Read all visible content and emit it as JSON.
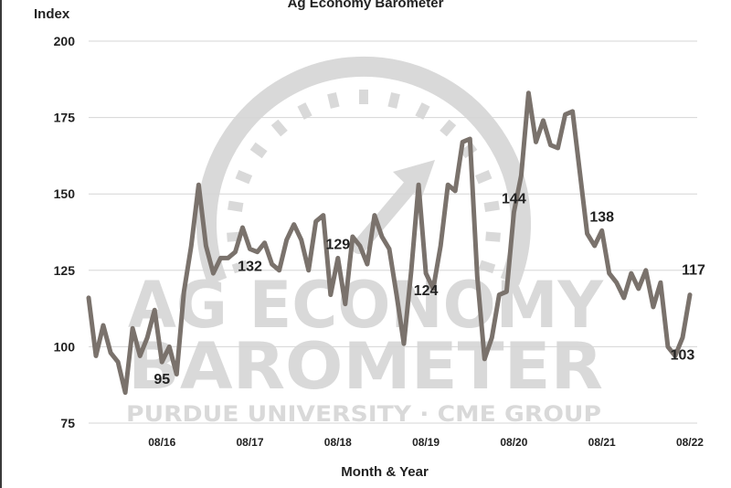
{
  "chart_data": {
    "type": "line",
    "title": "Ag Economy Barometer",
    "ylabel": "Index",
    "xlabel": "Month & Year",
    "ylim": [
      75,
      200
    ],
    "yticks": [
      75,
      100,
      125,
      150,
      175,
      200
    ],
    "grid": "horizontal",
    "x_tick_labels": [
      "08/16",
      "08/17",
      "08/18",
      "08/19",
      "08/20",
      "08/21",
      "08/22"
    ],
    "x_tick_months": [
      "2016-08",
      "2017-08",
      "2018-08",
      "2019-08",
      "2020-08",
      "2021-08",
      "2022-08"
    ],
    "x_range": [
      "2015-10",
      "2022-09"
    ],
    "line_color": "#7a726c",
    "watermark": {
      "line1": "AG ECONOMY",
      "line2": "BAROMETER",
      "line3": "PURDUE UNIVERSITY · CME GROUP",
      "color": "#d9d9d9"
    },
    "series": [
      {
        "points": [
          [
            "2015-10",
            116
          ],
          [
            "2015-11",
            97
          ],
          [
            "2015-12",
            107
          ],
          [
            "2016-01",
            98
          ],
          [
            "2016-02",
            95
          ],
          [
            "2016-03",
            85
          ],
          [
            "2016-04",
            106
          ],
          [
            "2016-05",
            97
          ],
          [
            "2016-06",
            103
          ],
          [
            "2016-07",
            112
          ],
          [
            "2016-08",
            95
          ],
          [
            "2016-09",
            100
          ],
          [
            "2016-10",
            91
          ],
          [
            "2016-11",
            118
          ],
          [
            "2016-12",
            133
          ],
          [
            "2017-01",
            153
          ],
          [
            "2017-02",
            133
          ],
          [
            "2017-03",
            124
          ],
          [
            "2017-04",
            129
          ],
          [
            "2017-05",
            129
          ],
          [
            "2017-06",
            131
          ],
          [
            "2017-07",
            139
          ],
          [
            "2017-08",
            132
          ],
          [
            "2017-09",
            131
          ],
          [
            "2017-10",
            134
          ],
          [
            "2017-11",
            127
          ],
          [
            "2017-12",
            125
          ],
          [
            "2018-01",
            135
          ],
          [
            "2018-02",
            140
          ],
          [
            "2018-03",
            135
          ],
          [
            "2018-04",
            125
          ],
          [
            "2018-05",
            141
          ],
          [
            "2018-06",
            143
          ],
          [
            "2018-07",
            117
          ],
          [
            "2018-08",
            129
          ],
          [
            "2018-09",
            114
          ],
          [
            "2018-10",
            136
          ],
          [
            "2018-11",
            133
          ],
          [
            "2018-12",
            127
          ],
          [
            "2019-01",
            143
          ],
          [
            "2019-02",
            136
          ],
          [
            "2019-03",
            132
          ],
          [
            "2019-04",
            117
          ],
          [
            "2019-05",
            101
          ],
          [
            "2019-06",
            125
          ],
          [
            "2019-07",
            153
          ],
          [
            "2019-08",
            124
          ],
          [
            "2019-09",
            119
          ],
          [
            "2019-10",
            133
          ],
          [
            "2019-11",
            153
          ],
          [
            "2019-12",
            151
          ],
          [
            "2020-01",
            167
          ],
          [
            "2020-02",
            168
          ],
          [
            "2020-03",
            123
          ],
          [
            "2020-04",
            96
          ],
          [
            "2020-05",
            103
          ],
          [
            "2020-06",
            117
          ],
          [
            "2020-07",
            118
          ],
          [
            "2020-08",
            144
          ],
          [
            "2020-09",
            156
          ],
          [
            "2020-10",
            183
          ],
          [
            "2020-11",
            167
          ],
          [
            "2020-12",
            174
          ],
          [
            "2021-01",
            166
          ],
          [
            "2021-02",
            165
          ],
          [
            "2021-03",
            176
          ],
          [
            "2021-04",
            177
          ],
          [
            "2021-05",
            157
          ],
          [
            "2021-06",
            137
          ],
          [
            "2021-07",
            133
          ],
          [
            "2021-08",
            138
          ],
          [
            "2021-09",
            124
          ],
          [
            "2021-10",
            121
          ],
          [
            "2021-11",
            116
          ],
          [
            "2021-12",
            124
          ],
          [
            "2022-01",
            119
          ],
          [
            "2022-02",
            125
          ],
          [
            "2022-03",
            113
          ],
          [
            "2022-04",
            121
          ],
          [
            "2022-05",
            100
          ],
          [
            "2022-06",
            97
          ],
          [
            "2022-07",
            103
          ],
          [
            "2022-08",
            117
          ]
        ]
      }
    ],
    "annotations": [
      {
        "month": "2016-08",
        "value": 95,
        "label": "95",
        "position": "below"
      },
      {
        "month": "2017-08",
        "value": 132,
        "label": "132",
        "position": "below"
      },
      {
        "month": "2018-08",
        "value": 129,
        "label": "129",
        "position": "above"
      },
      {
        "month": "2019-08",
        "value": 124,
        "label": "124",
        "position": "below"
      },
      {
        "month": "2020-08",
        "value": 144,
        "label": "144",
        "position": "above"
      },
      {
        "month": "2021-08",
        "value": 138,
        "label": "138",
        "position": "above"
      },
      {
        "month": "2022-07",
        "value": 103,
        "label": "103",
        "position": "below"
      },
      {
        "month": "2022-08",
        "value": 117,
        "label": "117",
        "position": "above-right"
      }
    ]
  }
}
